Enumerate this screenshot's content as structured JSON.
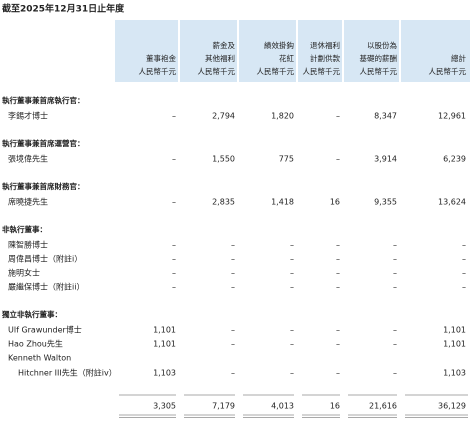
{
  "header": {
    "title": "截至2025年12月31日止年度"
  },
  "table": {
    "columns": [
      [
        "董事袍金",
        "人民幣千元"
      ],
      [
        "薪金及",
        "其他福利",
        "人民幣千元"
      ],
      [
        "績效掛鈎",
        "花紅",
        "人民幣千元"
      ],
      [
        "退休福利",
        "計劃供款",
        "人民幣千元"
      ],
      [
        "以股份為",
        "基礎的薪酬",
        "人民幣千元"
      ],
      [
        "總計",
        "人民幣千元"
      ]
    ],
    "sections": [
      {
        "heading": "執行董事兼首席執行官：",
        "rows": [
          {
            "name": [
              "李錫才博士"
            ],
            "cells": [
              "–",
              "2,794",
              "1,820",
              "–",
              "8,347",
              "12,961"
            ]
          }
        ]
      },
      {
        "heading": "執行董事兼首席運營官：",
        "rows": [
          {
            "name": [
              "張境偉先生"
            ],
            "cells": [
              "–",
              "1,550",
              "775",
              "–",
              "3,914",
              "6,239"
            ]
          }
        ]
      },
      {
        "heading": "執行董事兼首席財務官：",
        "rows": [
          {
            "name": [
              "席曉捷先生"
            ],
            "cells": [
              "–",
              "2,835",
              "1,418",
              "16",
              "9,355",
              "13,624"
            ]
          }
        ]
      },
      {
        "heading": "非執行董事：",
        "rows": [
          {
            "name": [
              "陳智勝博士"
            ],
            "cells": [
              "–",
              "–",
              "–",
              "–",
              "–",
              "–"
            ]
          },
          {
            "name": [
              "周偉昌博士（附註i）"
            ],
            "cells": [
              "–",
              "–",
              "–",
              "–",
              "–",
              "–"
            ]
          },
          {
            "name": [
              "施明女士"
            ],
            "cells": [
              "–",
              "–",
              "–",
              "–",
              "–",
              "–"
            ]
          },
          {
            "name": [
              "嚴繼保博士（附註ii）"
            ],
            "cells": [
              "–",
              "–",
              "–",
              "–",
              "–",
              "–"
            ]
          }
        ]
      },
      {
        "heading": "獨立非執行董事：",
        "rows": [
          {
            "name": [
              "Ulf Grawunder博士"
            ],
            "cells": [
              "1,101",
              "–",
              "–",
              "–",
              "–",
              "1,101"
            ]
          },
          {
            "name": [
              "Hao Zhou先生"
            ],
            "cells": [
              "1,101",
              "–",
              "–",
              "–",
              "–",
              "1,101"
            ]
          },
          {
            "name": [
              "Kenneth Walton",
              "Hitchner III先生（附註iv）"
            ],
            "cells": [
              "1,103",
              "–",
              "–",
              "–",
              "–",
              "1,103"
            ]
          }
        ]
      }
    ],
    "total": [
      "3,305",
      "7,179",
      "4,013",
      "16",
      "21,616",
      "36,129"
    ]
  }
}
